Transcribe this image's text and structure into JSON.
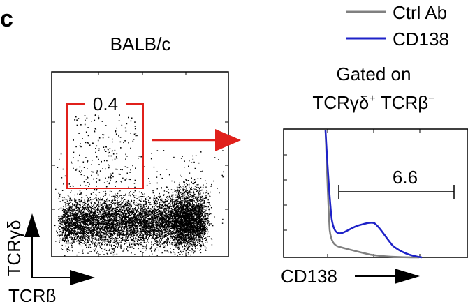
{
  "panel_label": "c",
  "colors": {
    "gate": "#e0201b",
    "ctrl": "#808080",
    "cd138": "#1e22c8",
    "axis": "#000000"
  },
  "legend": {
    "items": [
      {
        "label": "Ctrl Ab",
        "color": "#808080"
      },
      {
        "label": "CD138",
        "color": "#1e22c8"
      }
    ]
  },
  "chart_data": [
    {
      "type": "scatter",
      "title": "BALB/c",
      "xlabel": "TCRβ",
      "ylabel": "TCRγδ",
      "gate": {
        "label": "0.4",
        "value": 0.4
      },
      "arrow_to_next_panel": true
    },
    {
      "type": "line",
      "title": "Gated on",
      "subtitle": {
        "base1": "TCRγδ",
        "sup1": "+",
        "base2": " TCRβ",
        "sup2": "−"
      },
      "xlabel": "CD138",
      "marker": {
        "label": "6.6",
        "value": 6.6
      },
      "series": [
        {
          "name": "Ctrl Ab",
          "color": "#808080"
        },
        {
          "name": "CD138",
          "color": "#1e22c8"
        }
      ]
    }
  ]
}
